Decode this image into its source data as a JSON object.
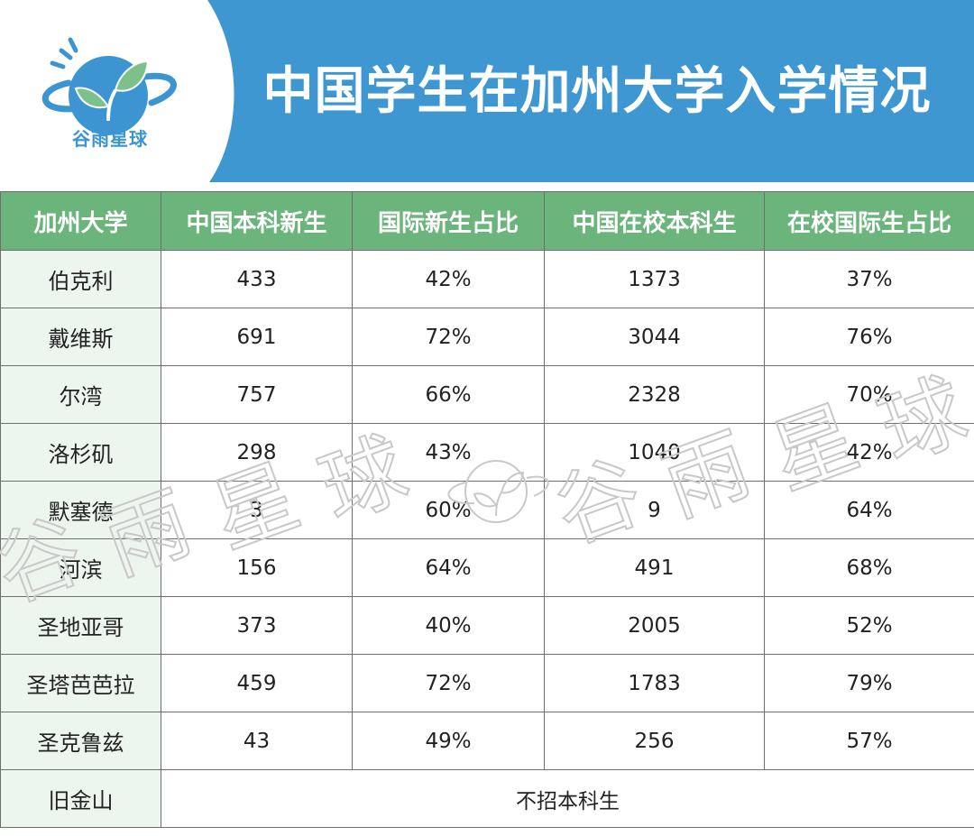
{
  "brand": {
    "logo_text": "谷雨星球",
    "accent_color": "#3c95d0",
    "leaf_color": "#6bb57d",
    "icon": "planet-sprout-logo-icon"
  },
  "title": "中国学生在加州大学入学情况",
  "table": {
    "columns": [
      "加州大学",
      "中国本科新生",
      "国际新生占比",
      "中国在校本科生",
      "在校国际生占比"
    ],
    "rows": [
      [
        "伯克利",
        "433",
        "42%",
        "1373",
        "37%"
      ],
      [
        "戴维斯",
        "691",
        "72%",
        "3044",
        "76%"
      ],
      [
        "尔湾",
        "757",
        "66%",
        "2328",
        "70%"
      ],
      [
        "洛杉矶",
        "298",
        "43%",
        "1040",
        "42%"
      ],
      [
        "默塞德",
        "3",
        "60%",
        "9",
        "64%"
      ],
      [
        "河滨",
        "156",
        "64%",
        "491",
        "68%"
      ],
      [
        "圣地亚哥",
        "373",
        "40%",
        "2005",
        "52%"
      ],
      [
        "圣塔芭芭拉",
        "459",
        "72%",
        "1783",
        "79%"
      ],
      [
        "圣克鲁兹",
        "43",
        "49%",
        "256",
        "57%"
      ]
    ],
    "footer_row": {
      "name": "旧金山",
      "note": "不招本科生"
    },
    "header_bg": "#6bb57d",
    "name_col_bg": "#edf5ef"
  },
  "watermark": {
    "text_chars": [
      "谷",
      "雨",
      "星",
      "球",
      "谷",
      "雨",
      "星",
      "球"
    ]
  }
}
